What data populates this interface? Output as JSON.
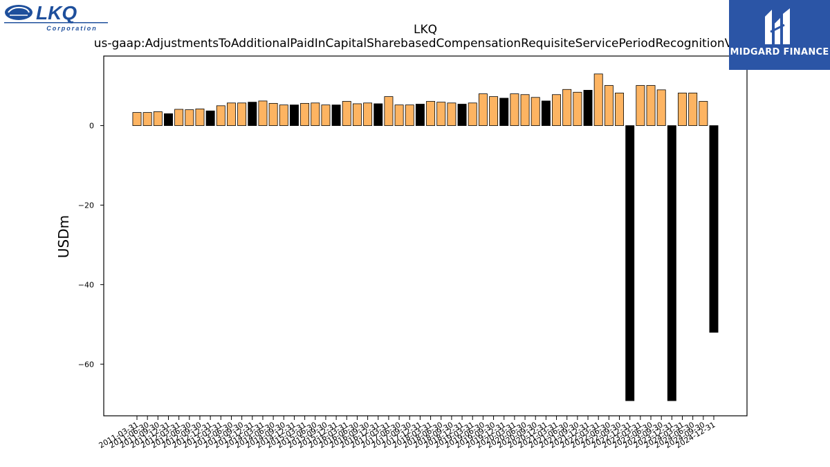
{
  "logos": {
    "left_text": "LKQ",
    "left_subtext": "Corporation",
    "right_text": "MIDGARD FINANCE"
  },
  "colors": {
    "positive": "#fdb462",
    "negative": "#000000",
    "logo_blue": "#2b55a6",
    "lkq_blue": "#1e4f9c"
  },
  "chart_data": {
    "type": "bar",
    "title": "LKQ",
    "subtitle": "us-gaap:AdjustmentsToAdditionalPaidInCapitalSharebasedCompensationRequisiteServicePeriodRecognitionValue",
    "xlabel": "",
    "ylabel": "USDm",
    "ylim": [
      -73,
      17.5
    ],
    "yticks": [
      0,
      -20,
      -40,
      -60
    ],
    "ytick_labels": [
      "0",
      "−20",
      "−40",
      "−60"
    ],
    "categories": [
      "2011-03-31",
      "2011-06-30",
      "2011-09-30",
      "2011-12-31",
      "2012-03-31",
      "2012-06-30",
      "2012-09-30",
      "2012-12-31",
      "2013-03-31",
      "2013-06-30",
      "2013-09-30",
      "2013-12-31",
      "2014-03-31",
      "2014-06-30",
      "2014-09-30",
      "2014-12-31",
      "2015-03-31",
      "2015-06-30",
      "2015-09-30",
      "2015-12-31",
      "2016-03-31",
      "2016-06-30",
      "2016-09-30",
      "2016-12-31",
      "2017-03-31",
      "2017-06-30",
      "2017-09-30",
      "2017-12-31",
      "2018-03-31",
      "2018-06-30",
      "2018-09-30",
      "2018-12-31",
      "2019-03-31",
      "2019-06-30",
      "2019-09-30",
      "2019-12-31",
      "2020-03-31",
      "2020-06-30",
      "2020-09-30",
      "2020-12-31",
      "2021-03-31",
      "2021-06-30",
      "2021-09-30",
      "2021-12-31",
      "2022-03-31",
      "2022-06-30",
      "2022-09-30",
      "2022-12-31",
      "2023-03-31",
      "2023-06-30",
      "2023-09-30",
      "2023-12-31",
      "2024-03-31",
      "2024-06-30",
      "2024-09-30",
      "2024-12-31"
    ],
    "values": [
      3.3,
      3.3,
      3.5,
      3.0,
      4.1,
      4.0,
      4.2,
      3.7,
      5.0,
      5.7,
      5.7,
      5.9,
      6.2,
      5.6,
      5.2,
      5.2,
      5.6,
      5.7,
      5.2,
      5.2,
      6.1,
      5.5,
      5.7,
      5.5,
      7.3,
      5.2,
      5.2,
      5.4,
      6.1,
      5.9,
      5.7,
      5.4,
      5.7,
      8.0,
      7.3,
      6.9,
      8.0,
      7.8,
      7.1,
      6.2,
      7.8,
      9.1,
      8.4,
      8.9,
      13.0,
      10.1,
      8.2,
      -69.2,
      10.1,
      10.1,
      9.0,
      -69.2,
      8.2,
      8.2,
      6.1,
      -52.0
    ],
    "highlight": [
      false,
      false,
      false,
      true,
      false,
      false,
      false,
      true,
      false,
      false,
      false,
      true,
      false,
      false,
      false,
      true,
      false,
      false,
      false,
      true,
      false,
      false,
      false,
      true,
      false,
      false,
      false,
      true,
      false,
      false,
      false,
      true,
      false,
      false,
      false,
      true,
      false,
      false,
      false,
      true,
      false,
      false,
      false,
      true,
      false,
      false,
      false,
      true,
      false,
      false,
      false,
      true,
      false,
      false,
      false,
      true
    ],
    "grid": false,
    "legend": "none"
  }
}
